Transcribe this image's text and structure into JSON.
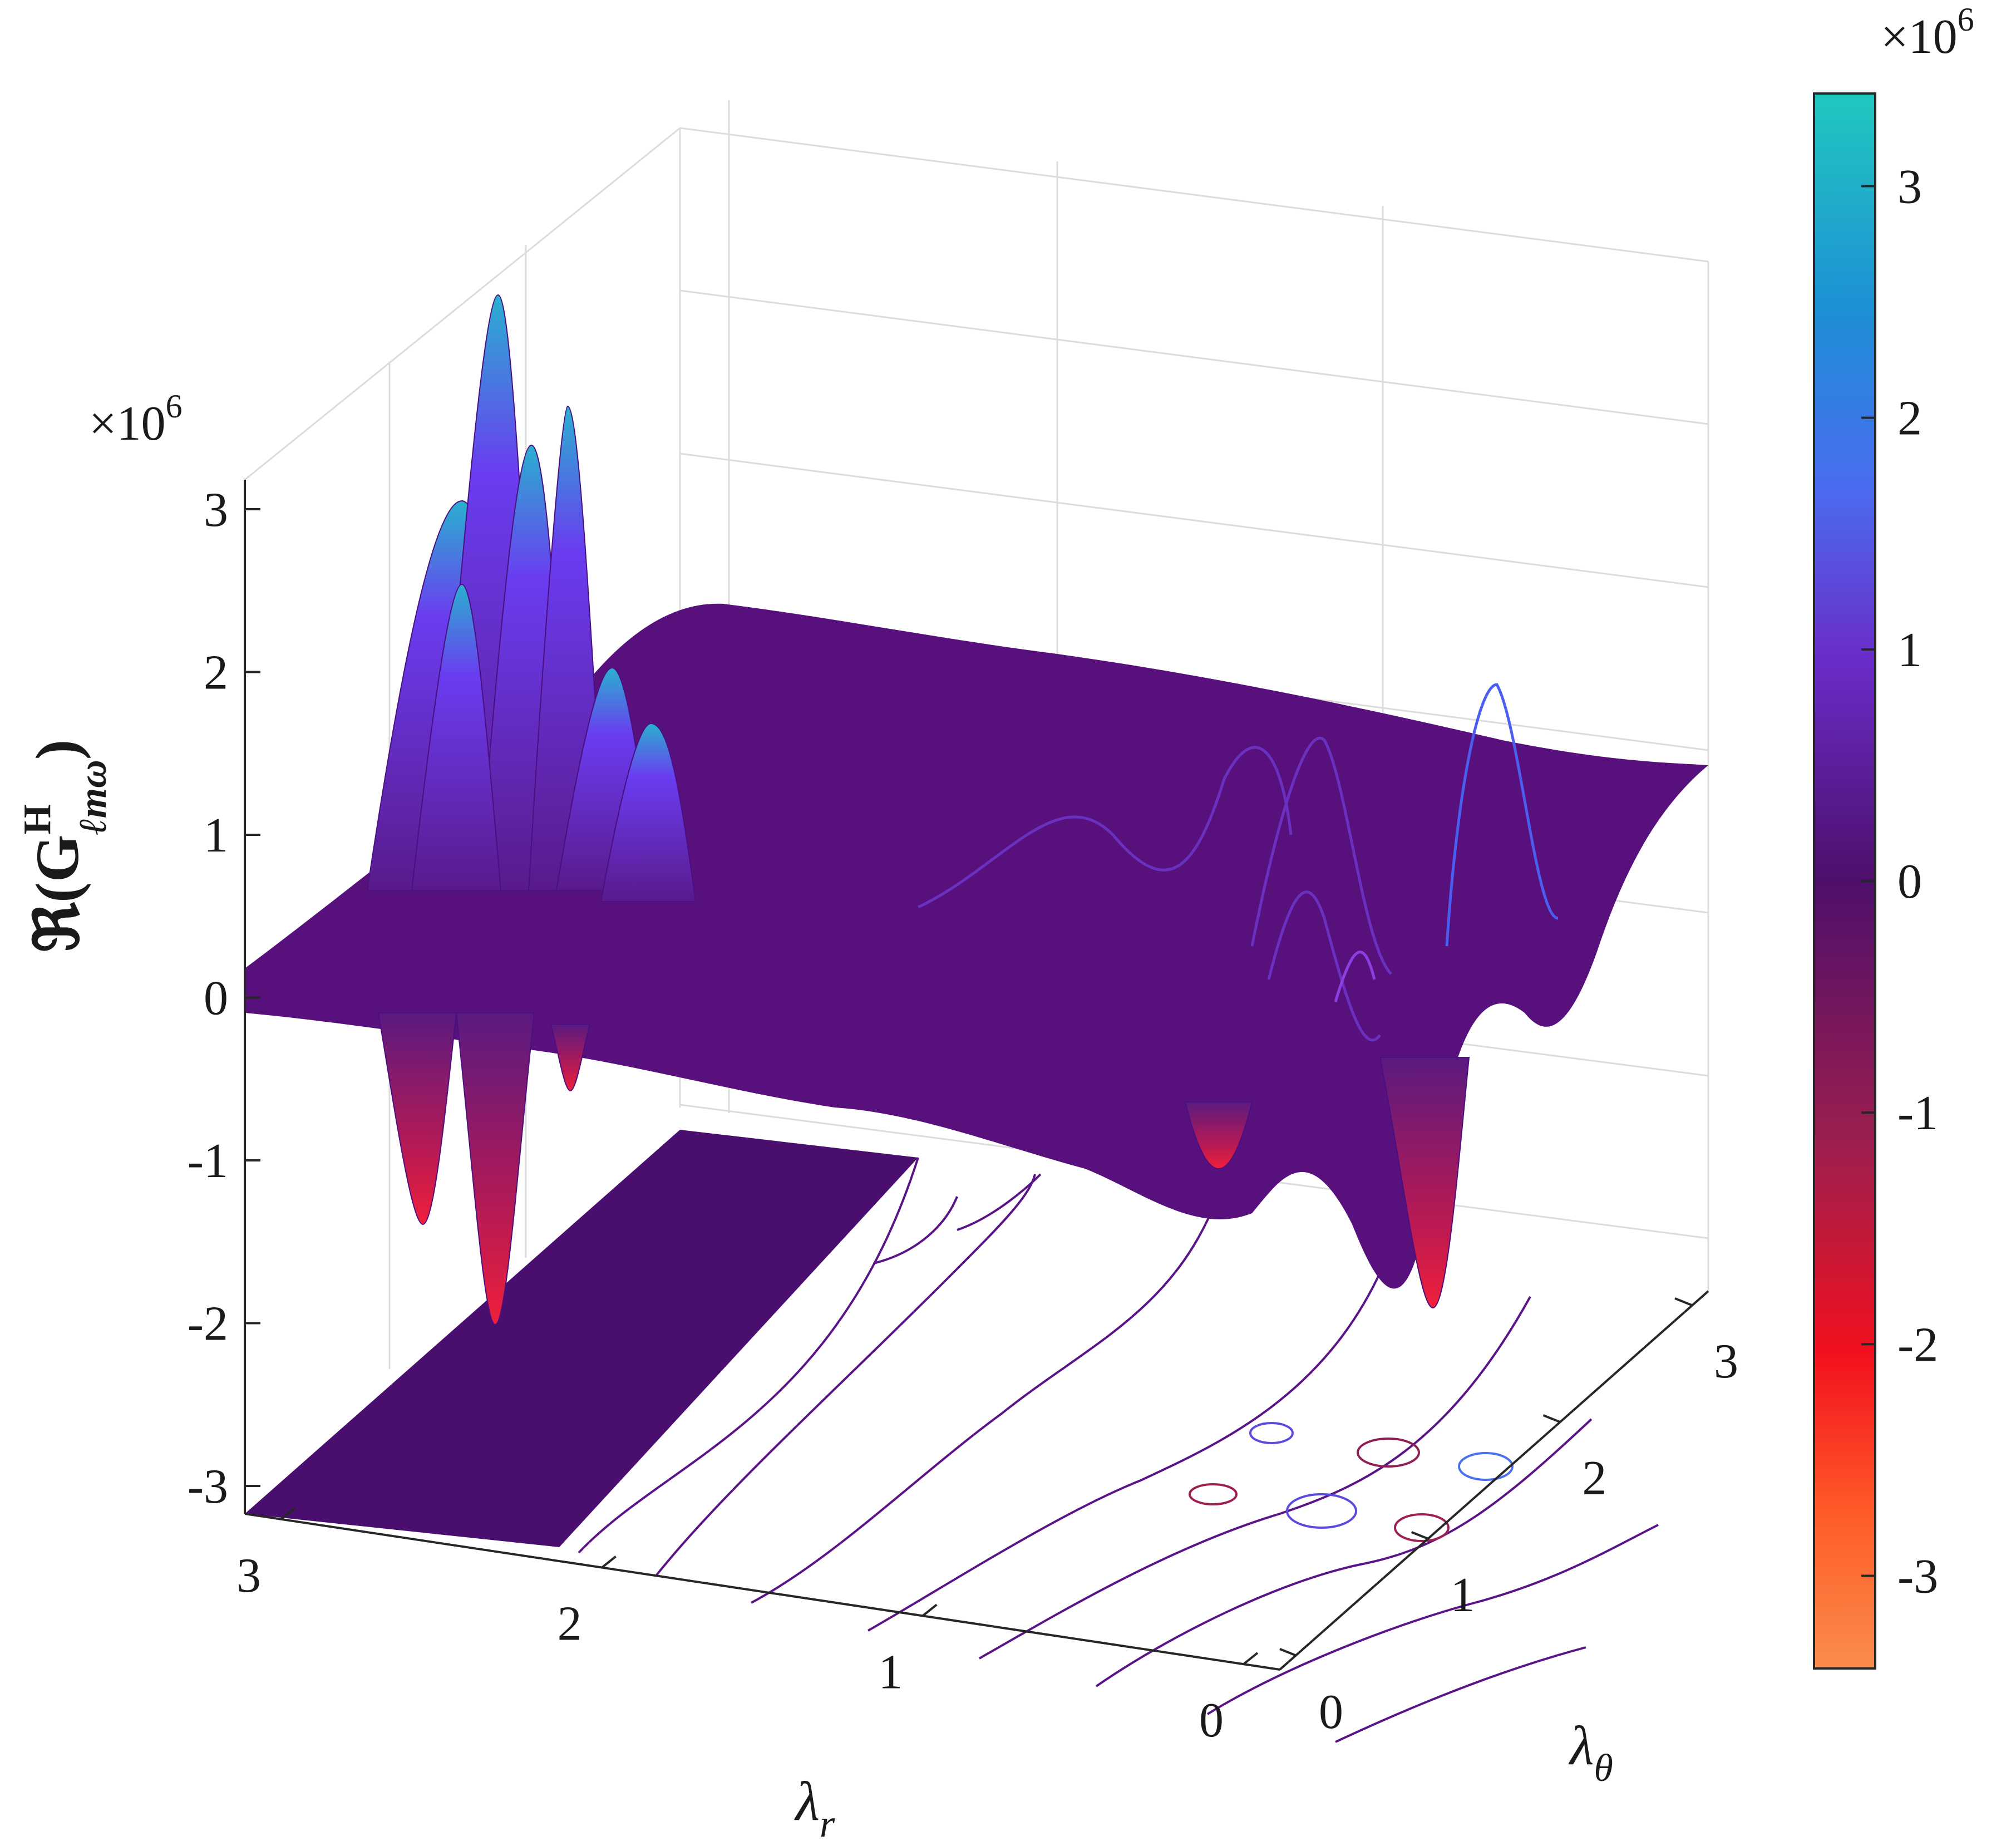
{
  "chart_data": {
    "type": "surface-3d",
    "surface_title": "",
    "xlabel": "λ_r",
    "ylabel": "λ_θ",
    "zlabel": "ℜ(G^H_ℓmω)",
    "z_multiplier": "×10^6",
    "x_range": [
      0,
      3.1416
    ],
    "y_range": [
      0,
      3.1416
    ],
    "z_range": [
      -3.2,
      3.2
    ],
    "x_ticks": [
      "0",
      "1",
      "2",
      "3"
    ],
    "y_ticks": [
      "0",
      "1",
      "2",
      "3"
    ],
    "z_ticks": [
      "-3",
      "-2",
      "-1",
      "0",
      "1",
      "2",
      "3"
    ],
    "projection": "contour on floor plane",
    "grid": true,
    "colorbar": {
      "label": "",
      "multiplier": "×10^6",
      "range": [
        -3.4,
        3.4
      ],
      "ticks": [
        "-3",
        "-2",
        "-1",
        "0",
        "1",
        "2",
        "3"
      ],
      "colormap": [
        "#F98D4A",
        "#FF5A28",
        "#F2101E",
        "#9E1F4E",
        "#4E0F6B",
        "#6A2CC8",
        "#4A6CF0",
        "#1E8FD6",
        "#20C8BE"
      ]
    },
    "peaks": [
      {
        "x": 3.0,
        "y": 1.3,
        "z": 2.95
      },
      {
        "x": 2.9,
        "y": 0.8,
        "z": 1.2
      },
      {
        "x": 0.2,
        "y": 0.9,
        "z": 1.0
      },
      {
        "x": 0.5,
        "y": 0.7,
        "z": 0.6
      },
      {
        "x": 0.1,
        "y": 0.2,
        "z": 0.35
      }
    ],
    "troughs": [
      {
        "x": 3.0,
        "y": 1.2,
        "z": -2.0
      },
      {
        "x": 0.1,
        "y": 0.6,
        "z": -1.75
      },
      {
        "x": 0.6,
        "y": 0.5,
        "z": -0.9
      }
    ]
  }
}
